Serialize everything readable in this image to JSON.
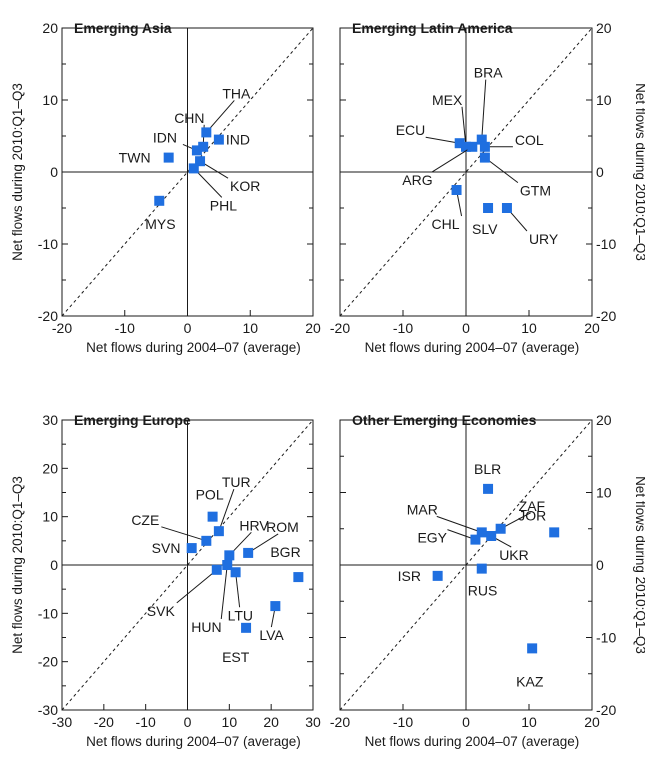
{
  "colors": {
    "marker": "#1f6fe0",
    "axis": "#1a1a1a",
    "diagonal": "#1a1a1a"
  },
  "chart_data": [
    {
      "type": "scatter",
      "title": "Emerging Asia",
      "xlabel": "Net flows during 2004–07 (average)",
      "ylabel": "Net flows during 2010:Q1–Q3",
      "ylabel_side": "left",
      "xlim": [
        -20,
        20
      ],
      "ylim": [
        -20,
        20
      ],
      "xticks": [
        -20,
        -10,
        0,
        10,
        20
      ],
      "yticks": [
        -20,
        -10,
        0,
        10,
        20
      ],
      "diagonal": "45-degree line",
      "grid": false,
      "points": [
        {
          "label": "TWN",
          "x": -3,
          "y": 2
        },
        {
          "label": "MYS",
          "x": -4.5,
          "y": -4
        },
        {
          "label": "IDN",
          "x": 1.5,
          "y": 3
        },
        {
          "label": "CHN",
          "x": 2.5,
          "y": 3.5
        },
        {
          "label": "THA",
          "x": 3,
          "y": 5.5
        },
        {
          "label": "IND",
          "x": 5,
          "y": 4.5
        },
        {
          "label": "KOR",
          "x": 2,
          "y": 1.5
        },
        {
          "label": "PHL",
          "x": 1,
          "y": 0.5
        }
      ]
    },
    {
      "type": "scatter",
      "title": "Emerging Latin America",
      "xlabel": "Net flows during 2004–07 (average)",
      "ylabel": "Net flows during 2010:Q1–Q3",
      "ylabel_side": "right",
      "xlim": [
        -20,
        20
      ],
      "ylim": [
        -20,
        20
      ],
      "xticks": [
        -20,
        -10,
        0,
        10,
        20
      ],
      "yticks": [
        -20,
        -10,
        0,
        10,
        20
      ],
      "diagonal": "45-degree line",
      "grid": false,
      "points": [
        {
          "label": "ECU",
          "x": -1,
          "y": 4
        },
        {
          "label": "MEX",
          "x": 0,
          "y": 3.5
        },
        {
          "label": "ARG",
          "x": 1,
          "y": 3.5
        },
        {
          "label": "BRA",
          "x": 2.5,
          "y": 4.5
        },
        {
          "label": "COL",
          "x": 3,
          "y": 3.5
        },
        {
          "label": "GTM",
          "x": 3,
          "y": 2
        },
        {
          "label": "CHL",
          "x": -1.5,
          "y": -2.5
        },
        {
          "label": "SLV",
          "x": 3.5,
          "y": -5
        },
        {
          "label": "URY",
          "x": 6.5,
          "y": -5
        }
      ]
    },
    {
      "type": "scatter",
      "title": "Emerging Europe",
      "xlabel": "Net flows during 2004–07 (average)",
      "ylabel": "Net flows during 2010:Q1–Q3",
      "ylabel_side": "left",
      "xlim": [
        -30,
        30
      ],
      "ylim": [
        -30,
        30
      ],
      "xticks": [
        -30,
        -20,
        -10,
        0,
        10,
        20,
        30
      ],
      "yticks": [
        -30,
        -20,
        -10,
        0,
        10,
        20,
        30
      ],
      "diagonal": "45-degree line",
      "grid": false,
      "points": [
        {
          "label": "SVN",
          "x": 1,
          "y": 3.5
        },
        {
          "label": "CZE",
          "x": 4.5,
          "y": 5
        },
        {
          "label": "POL",
          "x": 6,
          "y": 10
        },
        {
          "label": "TUR",
          "x": 7.5,
          "y": 7
        },
        {
          "label": "HRV",
          "x": 10,
          "y": 2
        },
        {
          "label": "ROM",
          "x": 14.5,
          "y": 2.5
        },
        {
          "label": "BGR",
          "x": 26.5,
          "y": -2.5
        },
        {
          "label": "SVK",
          "x": 7,
          "y": -1
        },
        {
          "label": "HUN",
          "x": 9.5,
          "y": 0
        },
        {
          "label": "LTU",
          "x": 11.5,
          "y": -1.5
        },
        {
          "label": "LVA",
          "x": 21,
          "y": -8.5
        },
        {
          "label": "EST",
          "x": 14,
          "y": -13
        }
      ]
    },
    {
      "type": "scatter",
      "title": "Other Emerging Economies",
      "xlabel": "Net flows during 2004–07 (average)",
      "ylabel": "Net flows during 2010:Q1–Q3",
      "ylabel_side": "right",
      "xlim": [
        -20,
        20
      ],
      "ylim": [
        -20,
        20
      ],
      "xticks": [
        -20,
        -10,
        0,
        10,
        20
      ],
      "yticks": [
        -20,
        -10,
        0,
        10,
        20
      ],
      "diagonal": "45-degree line",
      "grid": false,
      "points": [
        {
          "label": "BLR",
          "x": 3.5,
          "y": 10.5
        },
        {
          "label": "MAR",
          "x": 2.5,
          "y": 4.5
        },
        {
          "label": "EGY",
          "x": 1.5,
          "y": 3.5
        },
        {
          "label": "ZAF",
          "x": 5.5,
          "y": 5
        },
        {
          "label": "JOR",
          "x": 14,
          "y": 4.5
        },
        {
          "label": "UKR",
          "x": 4,
          "y": 4
        },
        {
          "label": "ISR",
          "x": -4.5,
          "y": -1.5
        },
        {
          "label": "RUS",
          "x": 2.5,
          "y": -0.5
        },
        {
          "label": "KAZ",
          "x": 10.5,
          "y": -11.5
        }
      ]
    }
  ]
}
